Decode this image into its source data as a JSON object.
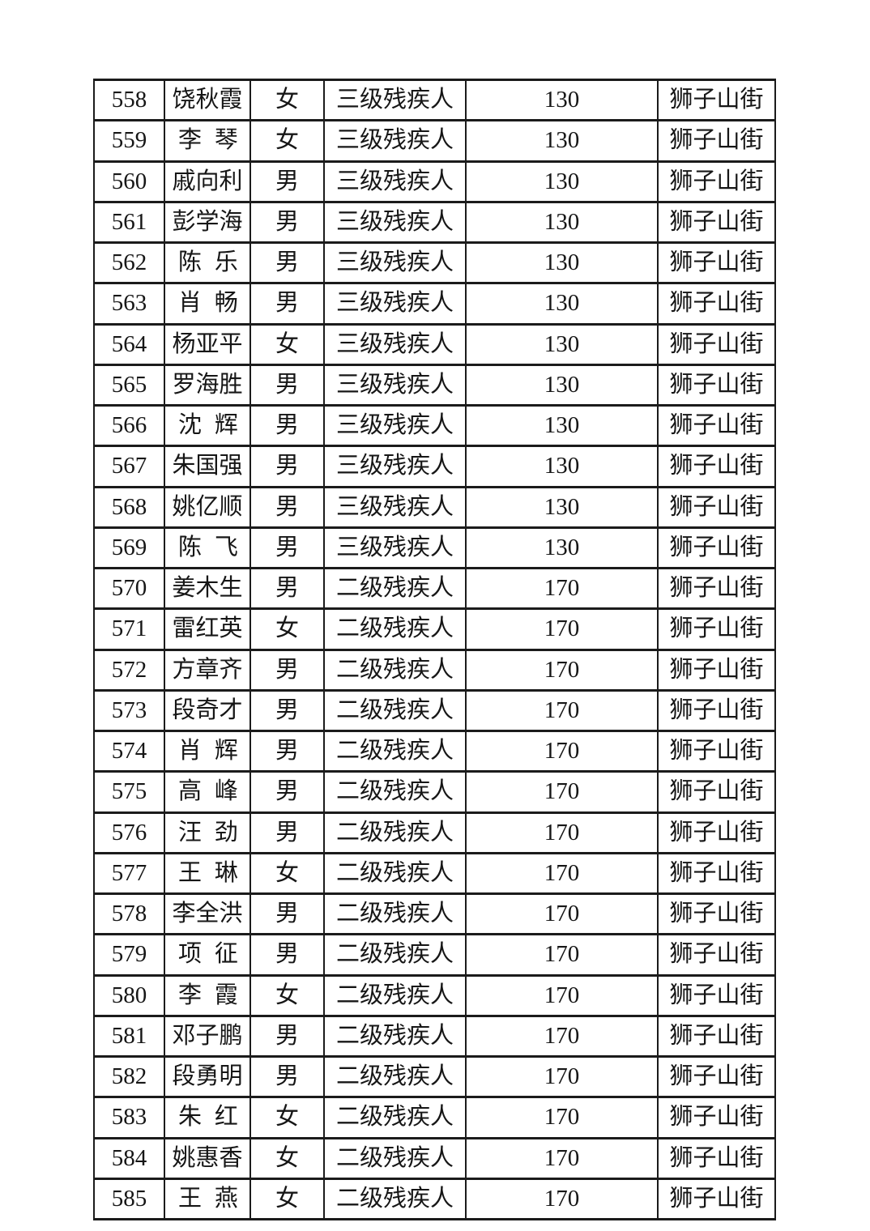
{
  "page": {
    "type": "scanned-document-table-continuation",
    "background_color": "#ffffff",
    "text_color": "#161616",
    "border_color": "#1b1b1b"
  },
  "table": {
    "cell_fields": [
      "no",
      "name",
      "gender",
      "category",
      "amount",
      "street"
    ],
    "rows": [
      [
        "558",
        "饶秋霞",
        "女",
        "三级残疾人",
        "130",
        "狮子山街"
      ],
      [
        "559",
        "李琴",
        "女",
        "三级残疾人",
        "130",
        "狮子山街"
      ],
      [
        "560",
        "戚向利",
        "男",
        "三级残疾人",
        "130",
        "狮子山街"
      ],
      [
        "561",
        "彭学海",
        "男",
        "三级残疾人",
        "130",
        "狮子山街"
      ],
      [
        "562",
        "陈乐",
        "男",
        "三级残疾人",
        "130",
        "狮子山街"
      ],
      [
        "563",
        "肖畅",
        "男",
        "三级残疾人",
        "130",
        "狮子山街"
      ],
      [
        "564",
        "杨亚平",
        "女",
        "三级残疾人",
        "130",
        "狮子山街"
      ],
      [
        "565",
        "罗海胜",
        "男",
        "三级残疾人",
        "130",
        "狮子山街"
      ],
      [
        "566",
        "沈辉",
        "男",
        "三级残疾人",
        "130",
        "狮子山街"
      ],
      [
        "567",
        "朱国强",
        "男",
        "三级残疾人",
        "130",
        "狮子山街"
      ],
      [
        "568",
        "姚亿顺",
        "男",
        "三级残疾人",
        "130",
        "狮子山街"
      ],
      [
        "569",
        "陈飞",
        "男",
        "三级残疾人",
        "130",
        "狮子山街"
      ],
      [
        "570",
        "姜木生",
        "男",
        "二级残疾人",
        "170",
        "狮子山街"
      ],
      [
        "571",
        "雷红英",
        "女",
        "二级残疾人",
        "170",
        "狮子山街"
      ],
      [
        "572",
        "方章齐",
        "男",
        "二级残疾人",
        "170",
        "狮子山街"
      ],
      [
        "573",
        "段奇才",
        "男",
        "二级残疾人",
        "170",
        "狮子山街"
      ],
      [
        "574",
        "肖辉",
        "男",
        "二级残疾人",
        "170",
        "狮子山街"
      ],
      [
        "575",
        "高峰",
        "男",
        "二级残疾人",
        "170",
        "狮子山街"
      ],
      [
        "576",
        "汪劲",
        "男",
        "二级残疾人",
        "170",
        "狮子山街"
      ],
      [
        "577",
        "王琳",
        "女",
        "二级残疾人",
        "170",
        "狮子山街"
      ],
      [
        "578",
        "李全洪",
        "男",
        "二级残疾人",
        "170",
        "狮子山街"
      ],
      [
        "579",
        "项征",
        "男",
        "二级残疾人",
        "170",
        "狮子山街"
      ],
      [
        "580",
        "李霞",
        "女",
        "二级残疾人",
        "170",
        "狮子山街"
      ],
      [
        "581",
        "邓子鹏",
        "男",
        "二级残疾人",
        "170",
        "狮子山街"
      ],
      [
        "582",
        "段勇明",
        "男",
        "二级残疾人",
        "170",
        "狮子山街"
      ],
      [
        "583",
        "朱红",
        "女",
        "二级残疾人",
        "170",
        "狮子山街"
      ],
      [
        "584",
        "姚惠香",
        "女",
        "二级残疾人",
        "170",
        "狮子山街"
      ],
      [
        "585",
        "王燕",
        "女",
        "二级残疾人",
        "170",
        "狮子山街"
      ]
    ]
  }
}
